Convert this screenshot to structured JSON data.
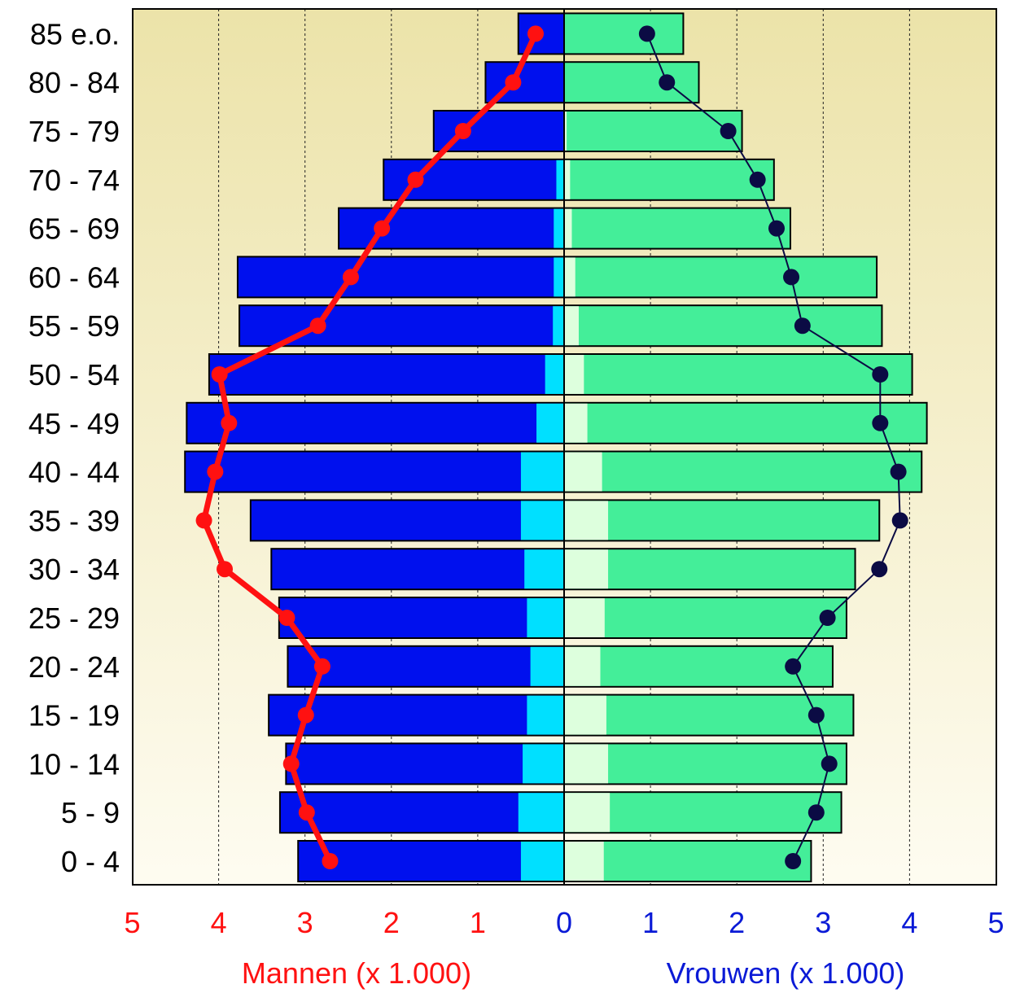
{
  "chart_data": {
    "type": "bar",
    "subtype": "population-pyramid",
    "categories": [
      "0 - 4",
      "5 - 9",
      "10 - 14",
      "15 - 19",
      "20 - 24",
      "25 - 29",
      "30 - 34",
      "35 - 39",
      "40 - 44",
      "45 - 49",
      "50 - 54",
      "55 - 59",
      "60 - 64",
      "65 - 69",
      "70 - 74",
      "75 - 79",
      "80 - 84",
      "85 e.o."
    ],
    "series": [
      {
        "side": "left",
        "values": [
          3.08,
          3.29,
          3.22,
          3.42,
          3.2,
          3.3,
          3.39,
          3.63,
          4.39,
          4.37,
          4.11,
          3.76,
          3.78,
          2.61,
          2.09,
          1.51,
          0.91,
          0.53
        ],
        "color": "#0010ee"
      },
      {
        "side": "left",
        "values": [
          0.5,
          0.53,
          0.48,
          0.43,
          0.39,
          0.43,
          0.46,
          0.5,
          0.5,
          0.32,
          0.22,
          0.13,
          0.12,
          0.12,
          0.09,
          0.01,
          0.0,
          0.0
        ],
        "color": "#00e0ff"
      },
      {
        "side": "right",
        "values": [
          2.86,
          3.21,
          3.27,
          3.35,
          3.11,
          3.27,
          3.37,
          3.65,
          4.14,
          4.2,
          4.03,
          3.68,
          3.62,
          2.62,
          2.43,
          2.06,
          1.56,
          1.38
        ],
        "color": "#44ee99"
      },
      {
        "side": "right",
        "values": [
          0.45,
          0.52,
          0.5,
          0.48,
          0.41,
          0.46,
          0.5,
          0.5,
          0.43,
          0.26,
          0.22,
          0.16,
          0.12,
          0.08,
          0.06,
          0.02,
          0.0,
          0.0
        ],
        "color": "#ddffdd"
      },
      {
        "side": "left",
        "kind": "line",
        "values": [
          2.71,
          2.98,
          3.16,
          2.99,
          2.8,
          3.21,
          3.93,
          4.17,
          4.04,
          3.88,
          3.99,
          2.85,
          2.47,
          2.11,
          1.72,
          1.17,
          0.59,
          0.33
        ],
        "color": "#ff1111"
      },
      {
        "side": "right",
        "kind": "line",
        "values": [
          2.65,
          2.92,
          3.07,
          2.92,
          2.65,
          3.05,
          3.65,
          3.89,
          3.87,
          3.66,
          3.66,
          2.76,
          2.63,
          2.46,
          2.24,
          1.9,
          1.19,
          0.96
        ],
        "color": "#0b0b44"
      }
    ],
    "xlabel_left": "Mannen (x 1.000)",
    "xlabel_right": "Vrouwen (x 1.000)",
    "left_ticks": [
      "5",
      "4",
      "3",
      "2",
      "1"
    ],
    "right_ticks": [
      "0",
      "1",
      "2",
      "3",
      "4",
      "5"
    ],
    "xlim": [
      -5,
      5
    ],
    "grid": "vertical-dashed",
    "colors": {
      "left_axis_text": "#ff1111",
      "right_axis_text": "#0a1ad6",
      "background_top": "#ece3a9",
      "background_bottom": "#fefcf1"
    }
  }
}
